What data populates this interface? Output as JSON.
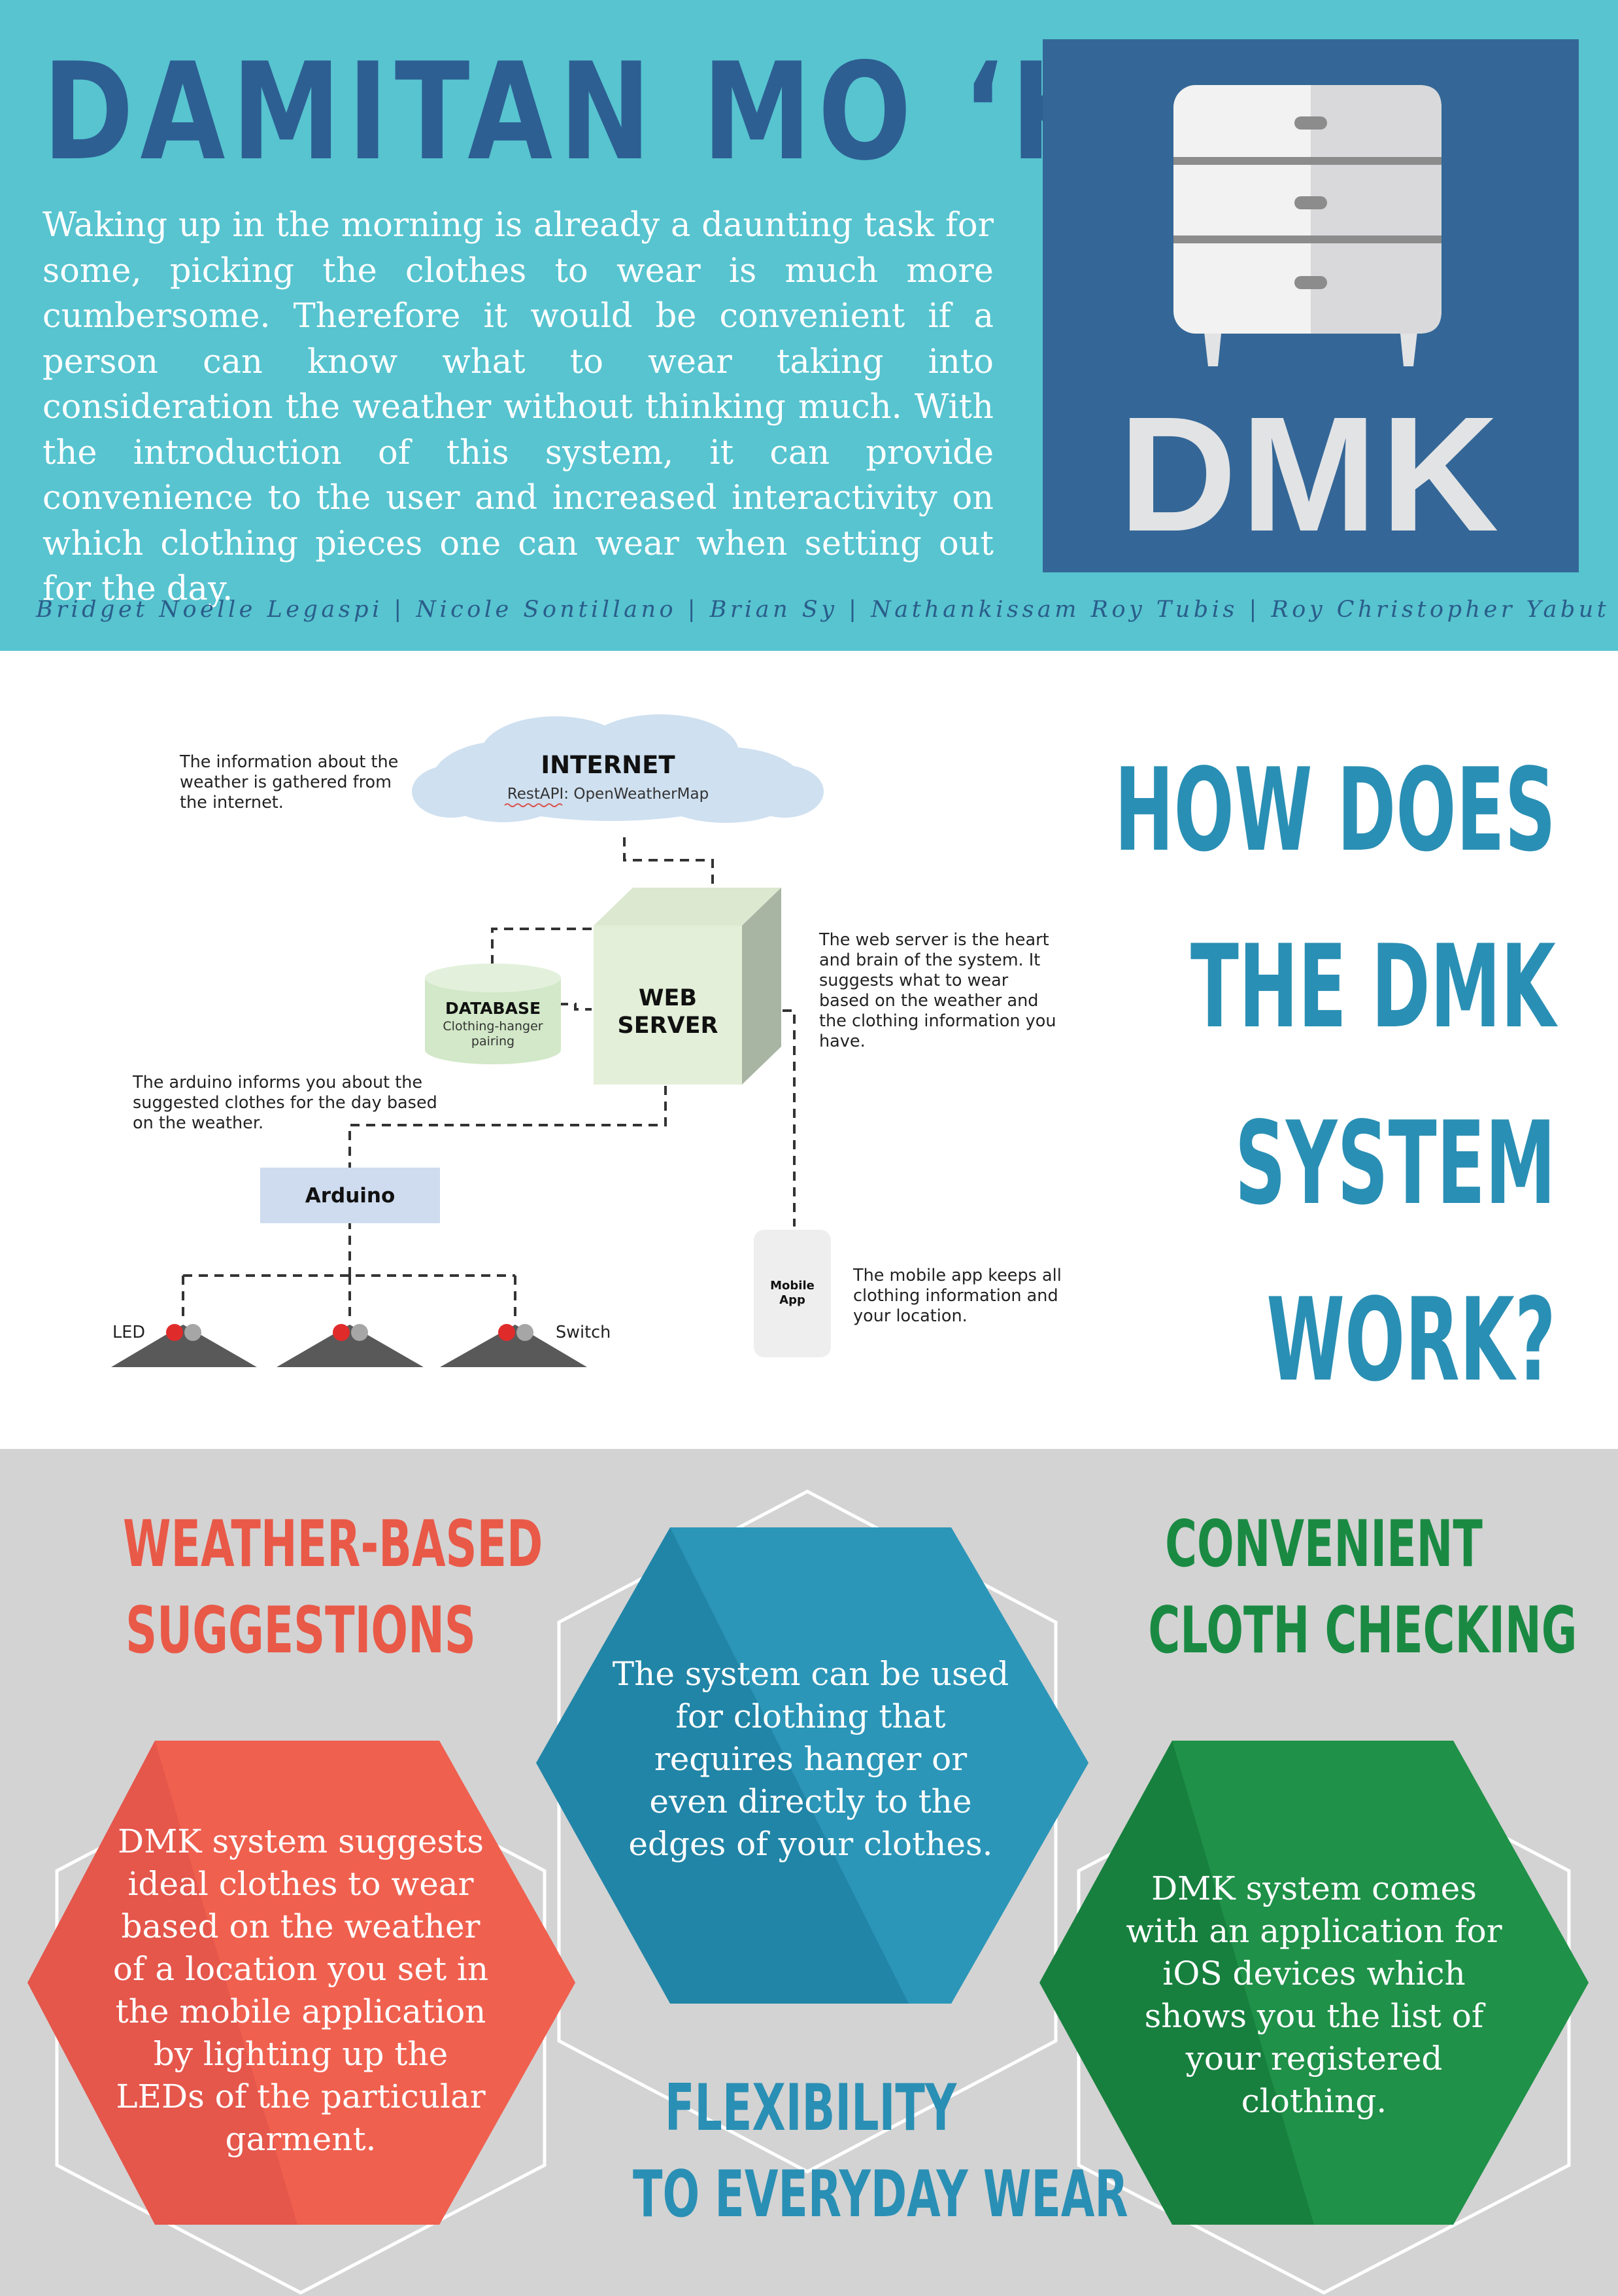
{
  "header": {
    "title": "DAMITAN MO ‘KO",
    "intro": "Waking up in the morning is already a daunting task for some, picking the clothes to wear is much more cumbersome. Therefore it would be convenient if a person can know what to wear taking into consideration the weather without thinking much. With the introduction of this system, it can provide convenience to the user and increased interactivity on which clothing pieces one can wear when setting out for the day.",
    "logo_text": "DMK",
    "logo_icon": "dresser-icon",
    "authors": "Bridget Noelle Legaspi | Nicole Sontillano |  Brian Sy | Nathankissam Roy Tubis | Roy Christopher Yabut"
  },
  "how_it_works": {
    "heading_lines": [
      "HOW DOES",
      "THE DMK",
      "SYSTEM",
      "WORK?"
    ],
    "internet": {
      "label": "INTERNET",
      "sub": "RestAPI: OpenWeatherMap",
      "note": "The information about the weather is gathered from the internet."
    },
    "web_server": {
      "label_1": "WEB",
      "label_2": "SERVER",
      "note": "The web server is the heart and brain of the system. It suggests what to wear based on the weather and the clothing information you have."
    },
    "database": {
      "label": "DATABASE",
      "sub_1": "Clothing-hanger",
      "sub_2": "pairing"
    },
    "arduino": {
      "label": "Arduino",
      "note": "The arduino informs you about the suggested clothes for the day based on the weather."
    },
    "mobile": {
      "label_1": "Mobile",
      "label_2": "App",
      "note": "The mobile app keeps all clothing information and your location."
    },
    "led_label": "LED",
    "switch_label": "Switch"
  },
  "features": {
    "weather": {
      "title_1": "WEATHER-BASED",
      "title_2": "SUGGESTIONS",
      "text": "DMK system suggests ideal clothes to wear based on the weather of a location you set in the mobile application by lighting up the LEDs of the particular garment."
    },
    "flexibility": {
      "title_1": "FLEXIBILITY",
      "title_2": "TO EVERYDAY WEAR",
      "text": "The system can be used for clothing that requires hanger or even directly to the edges of your clothes."
    },
    "convenient": {
      "title_1": "CONVENIENT",
      "title_2": "CLOTH CHECKING",
      "text": "DMK system comes with an application for iOS devices which shows you the list of your registered clothing."
    }
  },
  "colors": {
    "header_bg": "#57c4d0",
    "title": "#2d5f92",
    "logo_bg": "#346797",
    "accent_blue": "#2a8fb4",
    "red": "#e85a4a",
    "green": "#1a8a43",
    "bottom_bg": "#d3d3d3"
  }
}
